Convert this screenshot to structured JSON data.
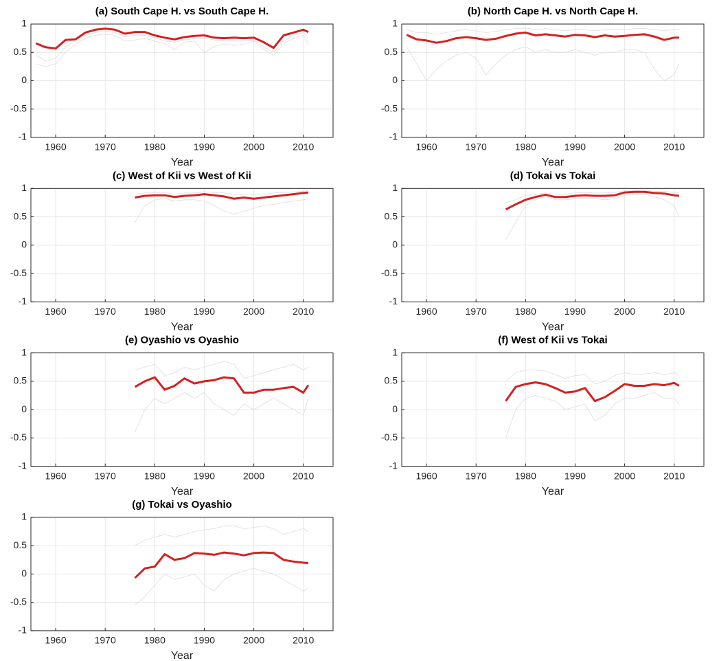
{
  "chart_data": [
    {
      "type": "line",
      "title": "(a) South Cape H. vs South Cape H.",
      "xlabel": "Year",
      "x": [
        1956,
        1958,
        1960,
        1962,
        1964,
        1966,
        1968,
        1970,
        1972,
        1974,
        1976,
        1978,
        1980,
        1982,
        1984,
        1986,
        1988,
        1990,
        1992,
        1994,
        1996,
        1998,
        2000,
        2002,
        2004,
        2006,
        2008,
        2010,
        2011
      ],
      "xlim": [
        1955,
        2016
      ],
      "ylim": [
        -1,
        1
      ],
      "xticks": [
        1960,
        1970,
        1980,
        1990,
        2000,
        2010
      ],
      "yticks": [
        -1,
        -0.5,
        0,
        0.5,
        1
      ],
      "grid": true,
      "series": [
        {
          "color": "#dcdcdc",
          "width": 0.8,
          "values": [
            0.45,
            0.35,
            0.4,
            0.6,
            0.7,
            0.8,
            0.85,
            0.87,
            0.85,
            0.78,
            0.8,
            0.8,
            0.76,
            0.7,
            0.68,
            0.72,
            0.74,
            0.75,
            0.72,
            0.7,
            0.7,
            0.7,
            0.72,
            0.6,
            0.5,
            0.7,
            0.8,
            0.85,
            0.75
          ]
        },
        {
          "color": "#dcdcdc",
          "width": 0.8,
          "values": [
            0.3,
            0.25,
            0.3,
            0.5,
            0.65,
            0.75,
            0.8,
            0.82,
            0.8,
            0.7,
            0.72,
            0.75,
            0.7,
            0.65,
            0.55,
            0.68,
            0.7,
            0.5,
            0.6,
            0.65,
            0.62,
            0.65,
            0.7,
            0.55,
            0.45,
            0.65,
            0.75,
            0.8,
            0.65
          ]
        },
        {
          "color": "#d62020",
          "width": 3,
          "values": [
            0.66,
            0.59,
            0.57,
            0.72,
            0.73,
            0.85,
            0.9,
            0.92,
            0.9,
            0.83,
            0.86,
            0.86,
            0.8,
            0.76,
            0.73,
            0.77,
            0.79,
            0.8,
            0.76,
            0.75,
            0.76,
            0.75,
            0.76,
            0.68,
            0.58,
            0.8,
            0.85,
            0.9,
            0.86
          ]
        }
      ]
    },
    {
      "type": "line",
      "title": "(b) North Cape H. vs North Cape H.",
      "xlabel": "Year",
      "x": [
        1956,
        1958,
        1960,
        1962,
        1964,
        1966,
        1968,
        1970,
        1972,
        1974,
        1976,
        1978,
        1980,
        1982,
        1984,
        1986,
        1988,
        1990,
        1992,
        1994,
        1996,
        1998,
        2000,
        2002,
        2004,
        2006,
        2008,
        2010,
        2011
      ],
      "xlim": [
        1955,
        2016
      ],
      "ylim": [
        -1,
        1
      ],
      "xticks": [
        1960,
        1970,
        1980,
        1990,
        2000,
        2010
      ],
      "yticks": [
        -1,
        -0.5,
        0,
        0.5,
        1
      ],
      "grid": true,
      "series": [
        {
          "color": "#dcdcdc",
          "width": 0.8,
          "values": [
            0.6,
            0.3,
            0.0,
            0.2,
            0.35,
            0.45,
            0.5,
            0.4,
            0.1,
            0.3,
            0.45,
            0.55,
            0.6,
            0.5,
            0.55,
            0.5,
            0.5,
            0.55,
            0.5,
            0.45,
            0.5,
            0.5,
            0.55,
            0.55,
            0.5,
            0.2,
            0.0,
            0.1,
            0.3
          ]
        },
        {
          "color": "#dcdcdc",
          "width": 0.8,
          "values": [
            0.9,
            0.85,
            0.85,
            0.82,
            0.85,
            0.88,
            0.9,
            0.88,
            0.85,
            0.87,
            0.9,
            0.92,
            0.93,
            0.9,
            0.92,
            0.9,
            0.88,
            0.9,
            0.9,
            0.88,
            0.9,
            0.9,
            0.9,
            0.92,
            0.92,
            0.9,
            0.88,
            0.9,
            0.9
          ]
        },
        {
          "color": "#d62020",
          "width": 3,
          "values": [
            0.81,
            0.73,
            0.71,
            0.67,
            0.7,
            0.75,
            0.77,
            0.75,
            0.72,
            0.74,
            0.79,
            0.83,
            0.85,
            0.8,
            0.82,
            0.8,
            0.78,
            0.81,
            0.8,
            0.77,
            0.8,
            0.78,
            0.79,
            0.81,
            0.82,
            0.78,
            0.72,
            0.76,
            0.76
          ]
        }
      ]
    },
    {
      "type": "line",
      "title": "(c) West of Kii vs West of Kii",
      "xlabel": "Year",
      "x": [
        1976,
        1978,
        1980,
        1982,
        1984,
        1986,
        1988,
        1990,
        1992,
        1994,
        1996,
        1998,
        2000,
        2002,
        2004,
        2006,
        2008,
        2010,
        2011
      ],
      "xlim": [
        1955,
        2016
      ],
      "ylim": [
        -1,
        1
      ],
      "xticks": [
        1960,
        1970,
        1980,
        1990,
        2000,
        2010
      ],
      "yticks": [
        -1,
        -0.5,
        0,
        0.5,
        1
      ],
      "grid": true,
      "series": [
        {
          "color": "#dcdcdc",
          "width": 0.8,
          "values": [
            0.4,
            0.7,
            0.8,
            0.82,
            0.78,
            0.8,
            0.8,
            0.78,
            0.7,
            0.6,
            0.55,
            0.6,
            0.65,
            0.7,
            0.72,
            0.75,
            0.78,
            0.8,
            0.82
          ]
        },
        {
          "color": "#dcdcdc",
          "width": 0.8,
          "values": [
            0.9,
            0.92,
            0.93,
            0.93,
            0.9,
            0.92,
            0.92,
            0.94,
            0.93,
            0.92,
            0.9,
            0.9,
            0.9,
            0.9,
            0.92,
            0.93,
            0.94,
            0.95,
            0.96
          ]
        },
        {
          "color": "#d62020",
          "width": 3,
          "values": [
            0.84,
            0.87,
            0.88,
            0.88,
            0.85,
            0.87,
            0.88,
            0.9,
            0.88,
            0.86,
            0.82,
            0.84,
            0.82,
            0.84,
            0.86,
            0.88,
            0.9,
            0.92,
            0.93
          ]
        }
      ]
    },
    {
      "type": "line",
      "title": "(d) Tokai vs Tokai",
      "xlabel": "Year",
      "x": [
        1976,
        1978,
        1980,
        1982,
        1984,
        1986,
        1988,
        1990,
        1992,
        1994,
        1996,
        1998,
        2000,
        2002,
        2004,
        2006,
        2008,
        2010,
        2011
      ],
      "xlim": [
        1955,
        2016
      ],
      "ylim": [
        -1,
        1
      ],
      "xticks": [
        1960,
        1970,
        1980,
        1990,
        2000,
        2010
      ],
      "yticks": [
        -1,
        -0.5,
        0,
        0.5,
        1
      ],
      "grid": true,
      "series": [
        {
          "color": "#dcdcdc",
          "width": 0.8,
          "values": [
            0.1,
            0.4,
            0.7,
            0.8,
            0.85,
            0.8,
            0.8,
            0.82,
            0.83,
            0.82,
            0.8,
            0.82,
            0.88,
            0.9,
            0.9,
            0.85,
            0.8,
            0.7,
            0.5
          ]
        },
        {
          "color": "#dcdcdc",
          "width": 0.8,
          "values": [
            0.75,
            0.8,
            0.88,
            0.9,
            0.92,
            0.9,
            0.9,
            0.92,
            0.93,
            0.92,
            0.92,
            0.93,
            0.96,
            0.97,
            0.97,
            0.95,
            0.95,
            0.93,
            0.92
          ]
        },
        {
          "color": "#d62020",
          "width": 3,
          "values": [
            0.63,
            0.72,
            0.8,
            0.85,
            0.89,
            0.85,
            0.85,
            0.87,
            0.88,
            0.87,
            0.87,
            0.88,
            0.93,
            0.94,
            0.94,
            0.92,
            0.91,
            0.88,
            0.87
          ]
        }
      ]
    },
    {
      "type": "line",
      "title": "(e) Oyashio vs Oyashio",
      "xlabel": "Year",
      "x": [
        1976,
        1978,
        1980,
        1982,
        1984,
        1986,
        1988,
        1990,
        1992,
        1994,
        1996,
        1998,
        2000,
        2002,
        2004,
        2006,
        2008,
        2010,
        2011
      ],
      "xlim": [
        1955,
        2016
      ],
      "ylim": [
        -1,
        1
      ],
      "xticks": [
        1960,
        1970,
        1980,
        1990,
        2000,
        2010
      ],
      "yticks": [
        -1,
        -0.5,
        0,
        0.5,
        1
      ],
      "grid": true,
      "series": [
        {
          "color": "#dcdcdc",
          "width": 0.8,
          "values": [
            -0.4,
            0.0,
            0.2,
            0.1,
            0.2,
            0.3,
            0.2,
            0.3,
            0.1,
            0.0,
            -0.1,
            0.1,
            0.0,
            0.1,
            0.2,
            0.1,
            0.0,
            -0.1,
            0.2
          ]
        },
        {
          "color": "#dcdcdc",
          "width": 0.8,
          "values": [
            0.7,
            0.75,
            0.8,
            0.6,
            0.65,
            0.75,
            0.7,
            0.75,
            0.8,
            0.85,
            0.8,
            0.55,
            0.6,
            0.65,
            0.7,
            0.75,
            0.8,
            0.7,
            0.75
          ]
        },
        {
          "color": "#d62020",
          "width": 3,
          "values": [
            0.4,
            0.5,
            0.57,
            0.35,
            0.42,
            0.55,
            0.46,
            0.5,
            0.52,
            0.57,
            0.55,
            0.3,
            0.3,
            0.35,
            0.35,
            0.38,
            0.4,
            0.3,
            0.43
          ]
        }
      ]
    },
    {
      "type": "line",
      "title": "(f) West of Kii vs Tokai",
      "xlabel": "Year",
      "x": [
        1976,
        1978,
        1980,
        1982,
        1984,
        1986,
        1988,
        1990,
        1992,
        1994,
        1996,
        1998,
        2000,
        2002,
        2004,
        2006,
        2008,
        2010,
        2011
      ],
      "xlim": [
        1955,
        2016
      ],
      "ylim": [
        -1,
        1
      ],
      "xticks": [
        1960,
        1970,
        1980,
        1990,
        2000,
        2010
      ],
      "yticks": [
        -1,
        -0.5,
        0,
        0.5,
        1
      ],
      "grid": true,
      "series": [
        {
          "color": "#dcdcdc",
          "width": 0.8,
          "values": [
            -0.5,
            0.0,
            0.2,
            0.25,
            0.2,
            0.15,
            0.0,
            0.05,
            0.1,
            -0.2,
            -0.1,
            0.1,
            0.2,
            0.2,
            0.25,
            0.3,
            0.2,
            0.2,
            0.1
          ]
        },
        {
          "color": "#dcdcdc",
          "width": 0.8,
          "values": [
            0.5,
            0.65,
            0.7,
            0.7,
            0.68,
            0.62,
            0.55,
            0.6,
            0.62,
            0.45,
            0.5,
            0.6,
            0.65,
            0.62,
            0.63,
            0.65,
            0.62,
            0.65,
            0.6
          ]
        },
        {
          "color": "#d62020",
          "width": 3,
          "values": [
            0.15,
            0.4,
            0.45,
            0.48,
            0.45,
            0.38,
            0.3,
            0.32,
            0.38,
            0.15,
            0.22,
            0.33,
            0.45,
            0.42,
            0.42,
            0.45,
            0.43,
            0.47,
            0.42
          ]
        }
      ]
    },
    {
      "type": "line",
      "title": "(g) Tokai vs Oyashio",
      "xlabel": "Year",
      "x": [
        1976,
        1978,
        1980,
        1982,
        1984,
        1986,
        1988,
        1990,
        1992,
        1994,
        1996,
        1998,
        2000,
        2002,
        2004,
        2006,
        2008,
        2010,
        2011
      ],
      "xlim": [
        1955,
        2016
      ],
      "ylim": [
        -1,
        1
      ],
      "xticks": [
        1960,
        1970,
        1980,
        1990,
        2000,
        2010
      ],
      "yticks": [
        -1,
        -0.5,
        0,
        0.5,
        1
      ],
      "grid": true,
      "series": [
        {
          "color": "#dcdcdc",
          "width": 0.8,
          "values": [
            -0.55,
            -0.4,
            -0.2,
            0.0,
            -0.1,
            -0.05,
            0.0,
            -0.2,
            -0.3,
            -0.1,
            0.0,
            0.05,
            0.1,
            0.05,
            0.0,
            -0.1,
            -0.2,
            -0.3,
            -0.25
          ]
        },
        {
          "color": "#dcdcdc",
          "width": 0.8,
          "values": [
            0.5,
            0.6,
            0.65,
            0.7,
            0.65,
            0.7,
            0.75,
            0.78,
            0.8,
            0.85,
            0.85,
            0.8,
            0.82,
            0.85,
            0.8,
            0.7,
            0.75,
            0.8,
            0.75
          ]
        },
        {
          "color": "#d62020",
          "width": 3,
          "values": [
            -0.07,
            0.1,
            0.13,
            0.35,
            0.25,
            0.28,
            0.37,
            0.36,
            0.34,
            0.38,
            0.36,
            0.33,
            0.37,
            0.38,
            0.37,
            0.25,
            0.22,
            0.2,
            0.19
          ]
        }
      ]
    }
  ]
}
